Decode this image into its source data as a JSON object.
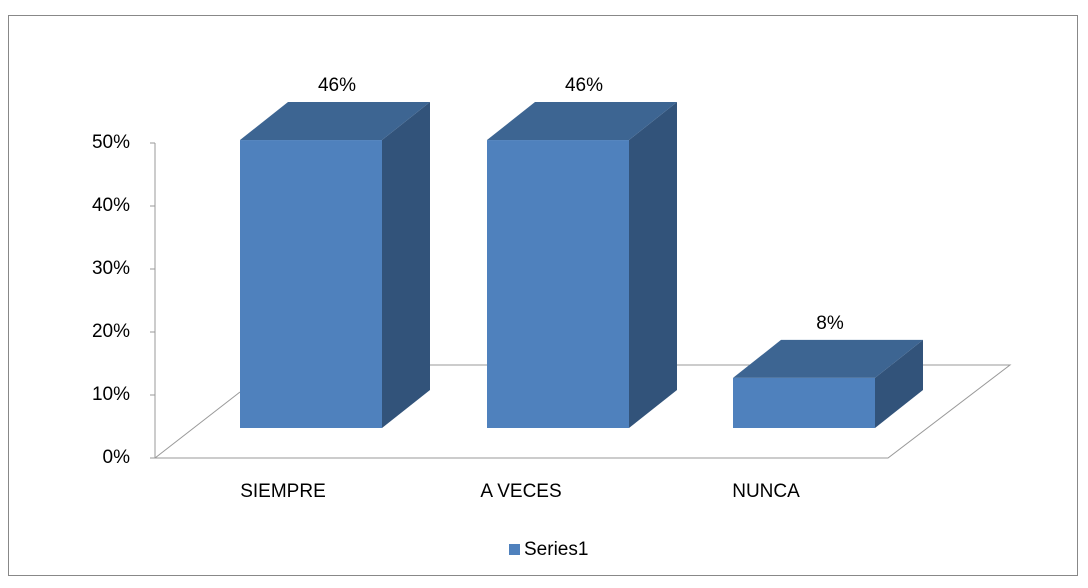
{
  "chart_data": {
    "type": "bar3d",
    "categories": [
      "SIEMPRE",
      "A VECES",
      "NUNCA"
    ],
    "series": [
      {
        "name": "Series1",
        "color": "#4f81bd",
        "values": [
          46,
          46,
          8
        ],
        "value_labels": [
          "46%",
          "46%",
          "8%"
        ]
      }
    ],
    "ylim": [
      0,
      50
    ],
    "yticks": [
      {
        "value": 0,
        "label": "0%"
      },
      {
        "value": 10,
        "label": "10%"
      },
      {
        "value": 20,
        "label": "20%"
      },
      {
        "value": 30,
        "label": "30%"
      },
      {
        "value": 40,
        "label": "40%"
      },
      {
        "value": 50,
        "label": "50%"
      }
    ],
    "legend": "bottom"
  }
}
